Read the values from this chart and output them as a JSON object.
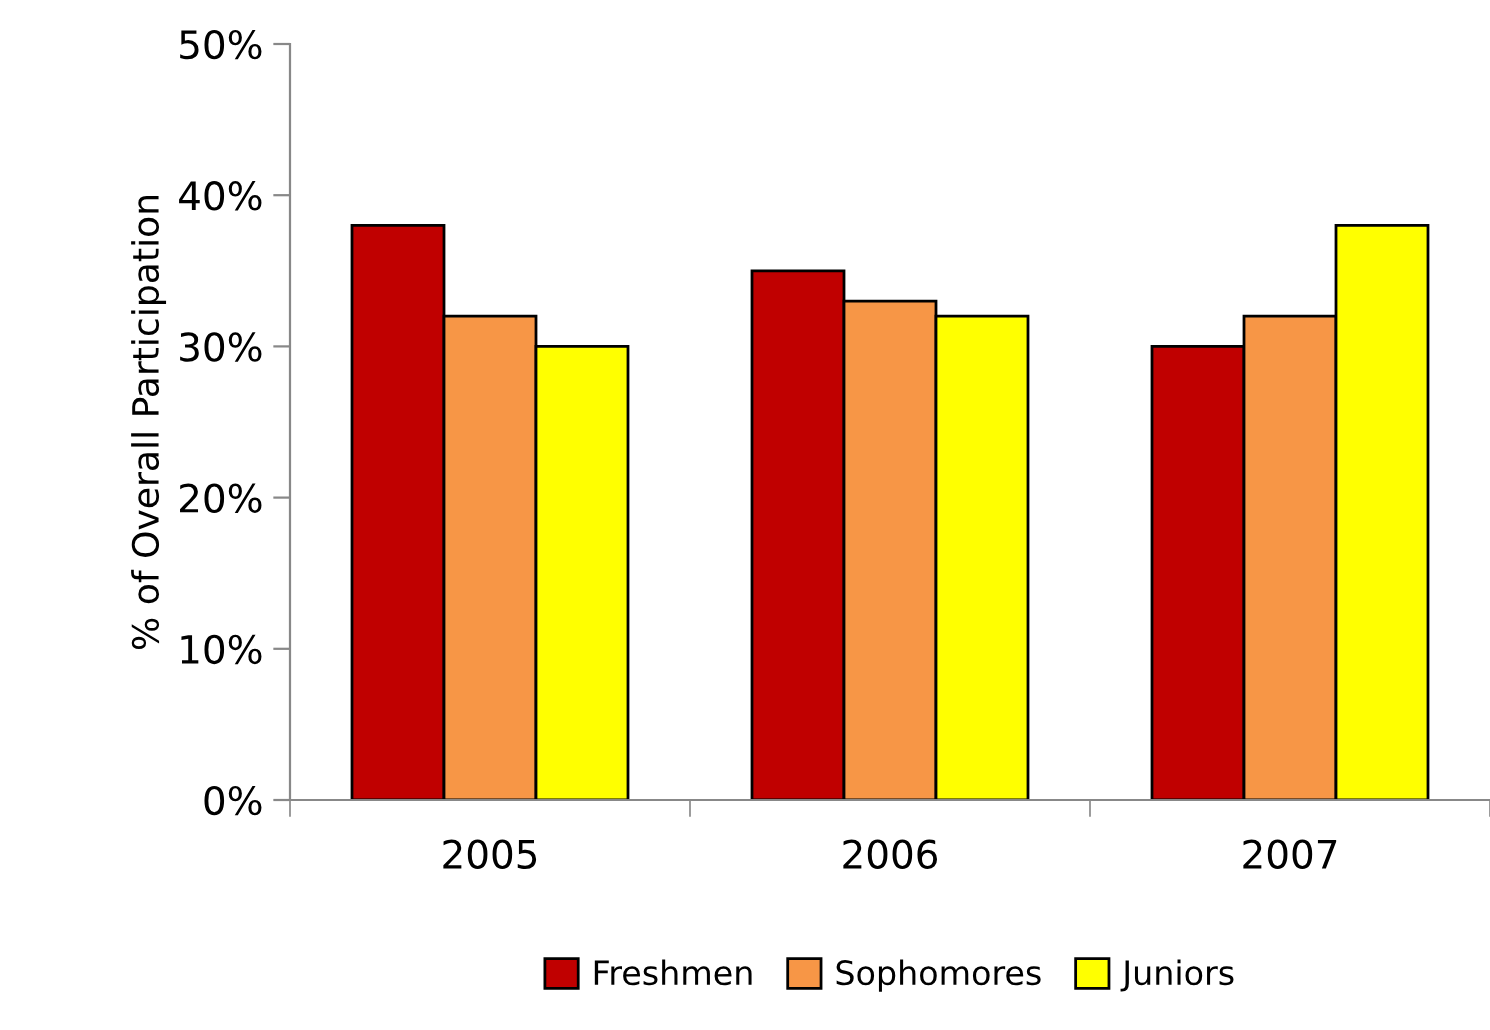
{
  "chart_data": {
    "type": "bar",
    "ylabel": "% of Overall Participation",
    "categories": [
      "2005",
      "2006",
      "2007"
    ],
    "series": [
      {
        "name": "Freshmen",
        "color": "#c00000",
        "values": [
          38,
          35,
          30
        ]
      },
      {
        "name": "Sophomores",
        "color": "#f79646",
        "values": [
          32,
          33,
          32
        ]
      },
      {
        "name": "Juniors",
        "color": "#ffff00",
        "values": [
          30,
          32,
          38
        ]
      }
    ],
    "ylim": [
      0,
      50
    ],
    "yticks": [
      {
        "value": 0,
        "label": "0%"
      },
      {
        "value": 10,
        "label": "10%"
      },
      {
        "value": 20,
        "label": "20%"
      },
      {
        "value": 30,
        "label": "30%"
      },
      {
        "value": 40,
        "label": "40%"
      },
      {
        "value": 50,
        "label": "50%"
      }
    ],
    "grid": false,
    "legend": "bottom"
  }
}
